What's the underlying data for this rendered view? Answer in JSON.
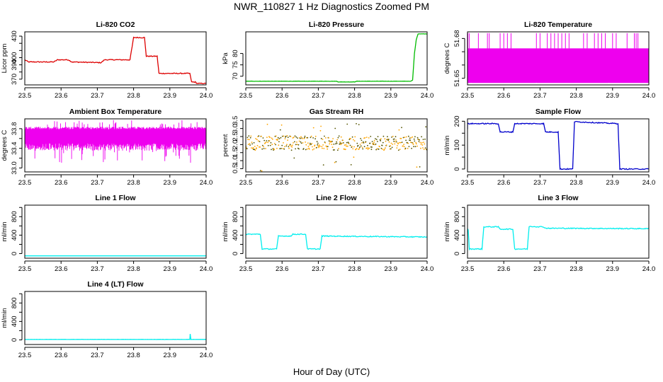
{
  "figure": {
    "title": "NWR_110827  1 Hz Diagnostics Zoomed PM",
    "xlabel": "Hour of Day (UTC)"
  },
  "colors": {
    "co2": "#dd0000",
    "pressure": "#00bb00",
    "temperature": "#ee00ee",
    "rh": "#ffa500",
    "rh_points": "#555500",
    "sample_flow": "#0000cc",
    "line_flow": "#00eeee",
    "axis": "#000000"
  },
  "chart_data": [
    {
      "type": "line",
      "title": "Li-820 CO2",
      "ylabel": "Licor ppm",
      "xlim": [
        23.5,
        24.0
      ],
      "ylim": [
        362,
        436
      ],
      "xticks": [
        "23.5",
        "23.6",
        "23.7",
        "23.8",
        "23.9",
        "24.0"
      ],
      "yticks": [
        370,
        380,
        390,
        400,
        410,
        420,
        430
      ],
      "ytick_labels": [
        "370",
        "",
        "390",
        "400",
        "",
        "",
        "430"
      ],
      "series": [
        {
          "color": "co2",
          "noise": 0.6,
          "x": [
            23.5,
            23.51,
            23.58,
            23.59,
            23.62,
            23.63,
            23.71,
            23.72,
            23.79,
            23.8,
            23.83,
            23.835,
            23.865,
            23.87,
            23.955,
            23.96,
            23.97,
            23.975,
            24.0
          ],
          "y": [
            397,
            394,
            394,
            397,
            397,
            394,
            393,
            397,
            397,
            428,
            428,
            402,
            402,
            378,
            378,
            366,
            366,
            364,
            364
          ]
        }
      ]
    },
    {
      "type": "line",
      "title": "Li-820 Pressure",
      "ylabel": "kPa",
      "xlim": [
        23.5,
        24.0
      ],
      "ylim": [
        66.2,
        89.5
      ],
      "xticks": [
        "23.5",
        "23.6",
        "23.7",
        "23.8",
        "23.9",
        "24.0"
      ],
      "yticks": [
        70,
        75,
        80
      ],
      "ytick_labels": [
        "70",
        "75",
        "80"
      ],
      "series": [
        {
          "color": "pressure",
          "noise": 0.05,
          "x": [
            23.5,
            23.75,
            23.755,
            23.8,
            23.805,
            23.955,
            23.96,
            23.965,
            23.97,
            23.975,
            24.0
          ],
          "y": [
            67.8,
            67.8,
            67.5,
            67.5,
            67.8,
            67.8,
            68.3,
            80.0,
            86.0,
            88.6,
            88.6
          ]
        }
      ]
    },
    {
      "type": "line",
      "title": "Li-820 Temperature",
      "ylabel": "degrees C",
      "xlim": [
        23.5,
        24.0
      ],
      "ylim": [
        51.645,
        51.685
      ],
      "xticks": [
        "23.5",
        "23.6",
        "23.7",
        "23.8",
        "23.9",
        "24.0"
      ],
      "yticks": [
        51.65,
        51.66,
        51.67,
        51.68
      ],
      "ytick_labels": [
        "51.65",
        "",
        "",
        "51.68"
      ],
      "series": [
        {
          "color": "temperature",
          "band": [
            51.6465,
            51.6725
          ],
          "spikes": [
            23.501,
            23.505,
            23.53,
            23.555,
            23.56,
            23.59,
            23.6,
            23.61,
            23.62,
            23.69,
            23.7,
            23.72,
            23.73,
            23.74,
            23.75,
            23.76,
            23.77,
            23.78,
            23.82,
            23.83,
            23.85,
            23.86,
            23.87,
            23.88,
            23.9,
            23.91,
            23.94,
            23.96,
            23.965,
            23.97
          ],
          "spike_top": 51.684,
          "dips": [
            23.51,
            23.69,
            23.89
          ],
          "dip_bottom": 51.646
        }
      ]
    },
    {
      "type": "line",
      "title": "Ambient Box Temperature",
      "ylabel": "degrees C",
      "xlim": [
        23.5,
        24.0
      ],
      "ylim": [
        32.92,
        34.0
      ],
      "xticks": [
        "23.5",
        "23.6",
        "23.7",
        "23.8",
        "23.9",
        "24.0"
      ],
      "yticks": [
        33.0,
        33.2,
        33.4,
        33.6,
        33.8
      ],
      "ytick_labels": [
        "33.0",
        "",
        "33.4",
        "",
        "33.8"
      ],
      "series": [
        {
          "color": "temperature",
          "band": [
            33.5,
            33.79
          ],
          "jitter": [
            33.1,
            33.98
          ]
        }
      ]
    },
    {
      "type": "scatter",
      "title": "Gas Stream RH",
      "ylabel": "percent",
      "xlim": [
        23.5,
        24.0
      ],
      "ylim": [
        0.3,
        3.6
      ],
      "xticks": [
        "23.5",
        "23.6",
        "23.7",
        "23.8",
        "23.9",
        "24.0"
      ],
      "yticks": [
        0.5,
        1.0,
        1.5,
        2.0,
        2.5,
        3.0,
        3.5
      ],
      "ytick_labels": [
        "0.5",
        "1.0",
        "1.5",
        "2.0",
        "2.5",
        "3.0",
        "3.5"
      ],
      "series": [
        {
          "color": "rh",
          "center": 2.1,
          "spread": 0.45,
          "outlier_low": 0.3,
          "outlier_high": 3.4
        }
      ]
    },
    {
      "type": "line",
      "title": "Sample Flow",
      "ylabel": "ml/min",
      "xlim": [
        23.5,
        24.0
      ],
      "ylim": [
        -12,
        210
      ],
      "xticks": [
        "23.5",
        "23.6",
        "23.7",
        "23.8",
        "23.9",
        "24.0"
      ],
      "yticks": [
        0,
        50,
        100,
        150,
        200
      ],
      "ytick_labels": [
        "0",
        "",
        "100",
        "",
        "200"
      ],
      "series": [
        {
          "color": "sample_flow",
          "noise": 2,
          "x": [
            23.5,
            23.5,
            23.585,
            23.59,
            23.625,
            23.63,
            23.71,
            23.715,
            23.75,
            23.755,
            23.79,
            23.795,
            23.915,
            23.92,
            24.0
          ],
          "y": [
            165,
            190,
            190,
            155,
            155,
            190,
            190,
            155,
            155,
            0,
            0,
            198,
            190,
            0,
            0
          ]
        }
      ]
    },
    {
      "type": "line",
      "title": "Line 1 Flow",
      "ylabel": "ml/min",
      "xlim": [
        23.5,
        24.0
      ],
      "ylim": [
        -100,
        1050
      ],
      "xticks": [
        "23.5",
        "23.6",
        "23.7",
        "23.8",
        "23.9",
        "24.0"
      ],
      "yticks": [
        0,
        200,
        400,
        600,
        800,
        1000
      ],
      "ytick_labels": [
        "0",
        "",
        "400",
        "",
        "800",
        ""
      ],
      "series": [
        {
          "color": "line_flow",
          "noise": 0,
          "x": [
            23.5,
            24.0
          ],
          "y": [
            -50,
            -50
          ]
        }
      ]
    },
    {
      "type": "line",
      "title": "Line 2 Flow",
      "ylabel": "ml/min",
      "xlim": [
        23.5,
        24.0
      ],
      "ylim": [
        -100,
        1050
      ],
      "xticks": [
        "23.5",
        "23.6",
        "23.7",
        "23.8",
        "23.9",
        "24.0"
      ],
      "yticks": [
        0,
        200,
        400,
        600,
        800,
        1000
      ],
      "ytick_labels": [
        "0",
        "",
        "400",
        "",
        "800",
        ""
      ],
      "series": [
        {
          "color": "line_flow",
          "noise": 10,
          "x": [
            23.5,
            23.54,
            23.545,
            23.585,
            23.59,
            23.625,
            23.63,
            23.665,
            23.67,
            23.705,
            23.71,
            24.0
          ],
          "y": [
            420,
            420,
            100,
            100,
            380,
            380,
            420,
            420,
            100,
            100,
            380,
            360
          ]
        }
      ]
    },
    {
      "type": "line",
      "title": "Line 3 Flow",
      "ylabel": "ml/min",
      "xlim": [
        23.5,
        24.0
      ],
      "ylim": [
        -100,
        1050
      ],
      "xticks": [
        "23.5",
        "23.6",
        "23.7",
        "23.8",
        "23.9",
        "24.0"
      ],
      "yticks": [
        0,
        200,
        400,
        600,
        800,
        1000
      ],
      "ytick_labels": [
        "0",
        "",
        "400",
        "",
        "800",
        ""
      ],
      "series": [
        {
          "color": "line_flow",
          "noise": 10,
          "x": [
            23.5,
            23.502,
            23.505,
            23.54,
            23.545,
            23.585,
            23.59,
            23.625,
            23.63,
            23.665,
            23.67,
            23.71,
            23.715,
            24.0
          ],
          "y": [
            530,
            520,
            100,
            100,
            580,
            580,
            530,
            530,
            100,
            100,
            590,
            580,
            550,
            540
          ]
        }
      ]
    },
    {
      "type": "line",
      "title": "Line 4 (LT) Flow",
      "ylabel": "ml/min",
      "xlim": [
        23.5,
        24.0
      ],
      "ylim": [
        -100,
        1050
      ],
      "xticks": [
        "23.5",
        "23.6",
        "23.7",
        "23.8",
        "23.9",
        "24.0"
      ],
      "yticks": [
        0,
        200,
        400,
        600,
        800,
        1000
      ],
      "ytick_labels": [
        "0",
        "",
        "400",
        "",
        "800",
        ""
      ],
      "series": [
        {
          "color": "line_flow",
          "noise": 2,
          "x": [
            23.5,
            23.955,
            23.956,
            23.958,
            23.96,
            24.0
          ],
          "y": [
            10,
            10,
            130,
            10,
            10,
            10
          ]
        }
      ]
    }
  ]
}
